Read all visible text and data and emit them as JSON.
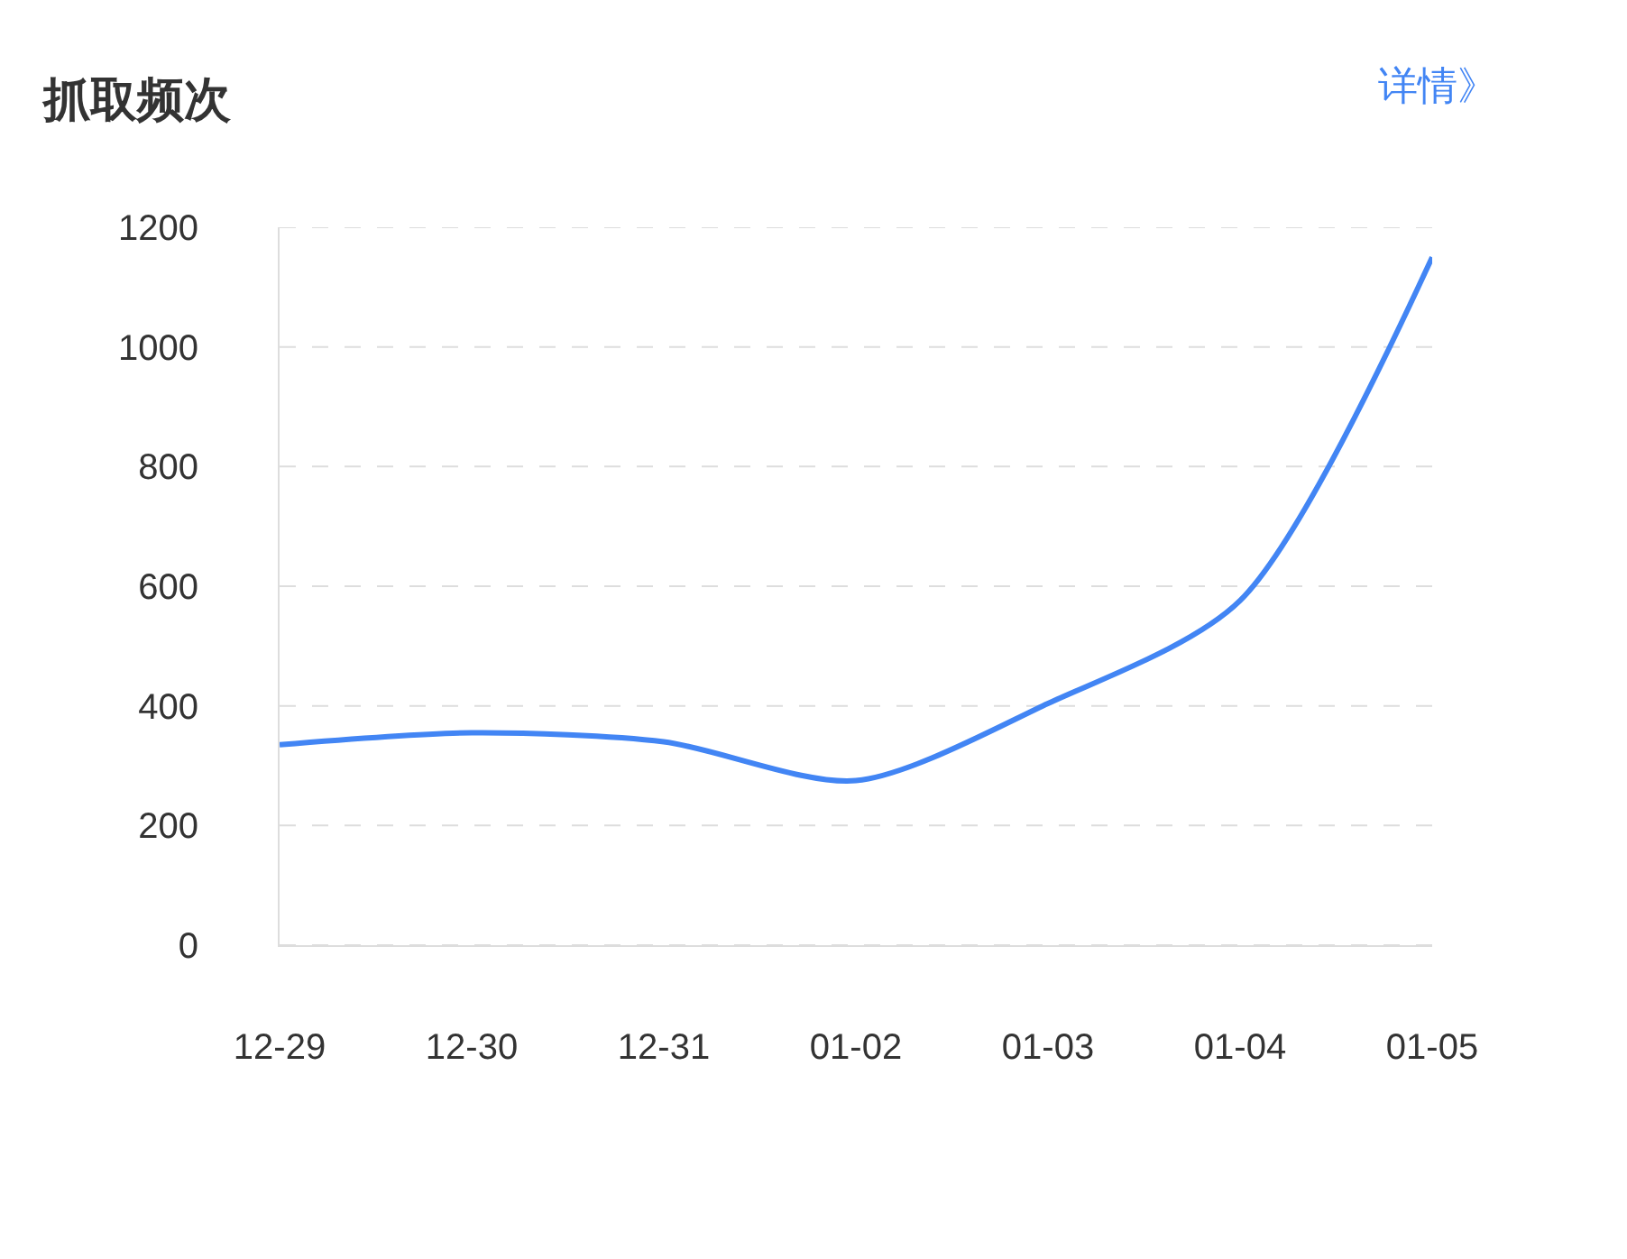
{
  "chart_data": {
    "type": "line",
    "title": "抓取频次",
    "annotations": [
      "详情》"
    ],
    "categories": [
      "12-29",
      "12-30",
      "12-31",
      "01-02",
      "01-03",
      "01-04",
      "01-05"
    ],
    "series": [
      {
        "color": "#4285f4",
        "values": [
          335,
          355,
          340,
          275,
          404,
          576,
          1150
        ]
      }
    ],
    "ylim": [
      0,
      1200
    ],
    "yticks": [
      0,
      200,
      400,
      600,
      800,
      1000,
      1200
    ],
    "grid": "y",
    "marker": "none",
    "line_style": "solid"
  }
}
